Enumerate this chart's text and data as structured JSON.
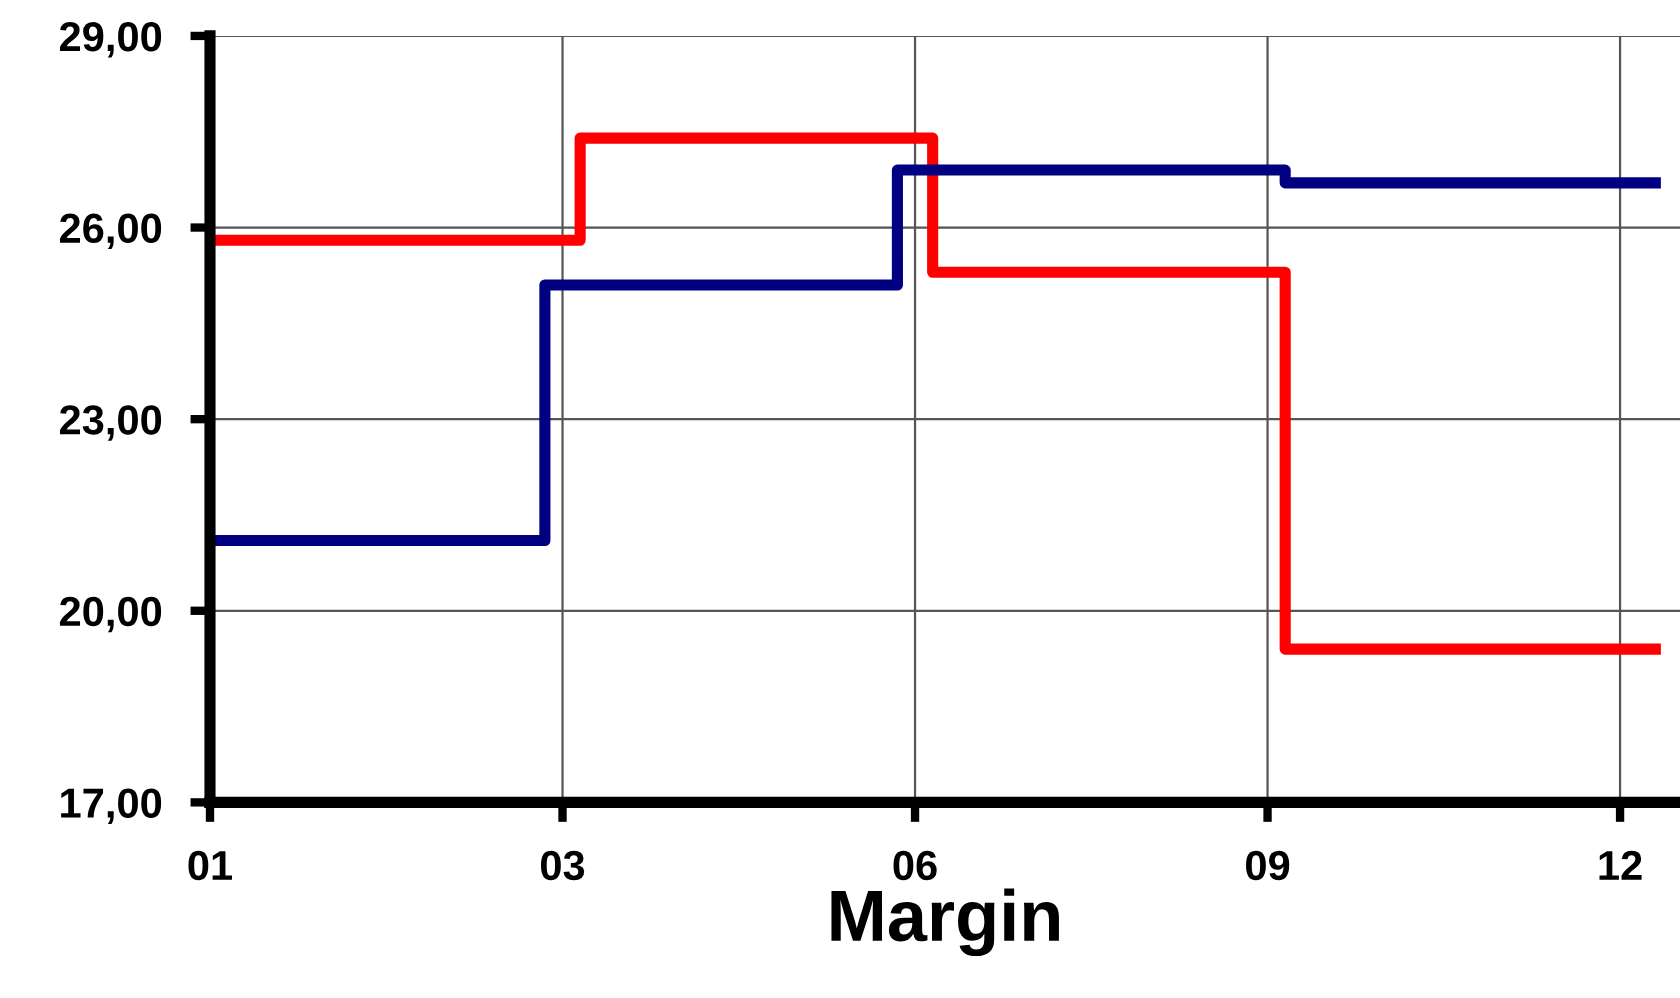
{
  "chart_data": {
    "type": "step",
    "xlabel": "Margin",
    "categories": [
      "01",
      null,
      null,
      null,
      null,
      null,
      null,
      null,
      null,
      null,
      "03",
      null,
      null,
      null,
      null,
      null,
      null,
      null,
      null,
      null,
      "06",
      null,
      null,
      null,
      null,
      null,
      null,
      null,
      null,
      null,
      "09",
      null,
      null,
      null,
      null,
      null,
      null,
      null,
      null,
      null,
      "12",
      null
    ],
    "series": [
      {
        "color": "#ff0000",
        "values": [
          25.8,
          25.8,
          25.8,
          25.8,
          25.8,
          25.8,
          25.8,
          25.8,
          25.8,
          25.8,
          25.8,
          27.4,
          27.4,
          27.4,
          27.4,
          27.4,
          27.4,
          27.4,
          27.4,
          27.4,
          27.4,
          25.3,
          25.3,
          25.3,
          25.3,
          25.3,
          25.3,
          25.3,
          25.3,
          25.3,
          25.3,
          19.4,
          19.4,
          19.4,
          19.4,
          19.4,
          19.4,
          19.4,
          19.4,
          19.4,
          19.4,
          19.4
        ]
      },
      {
        "color": "#000080",
        "values": [
          21.1,
          21.1,
          21.1,
          21.1,
          21.1,
          21.1,
          21.1,
          21.1,
          21.1,
          21.1,
          25.1,
          25.1,
          25.1,
          25.1,
          25.1,
          25.1,
          25.1,
          25.1,
          25.1,
          25.1,
          26.9,
          26.9,
          26.9,
          26.9,
          26.9,
          26.9,
          26.9,
          26.9,
          26.9,
          26.9,
          26.9,
          26.7,
          26.7,
          26.7,
          26.7,
          26.7,
          26.7,
          26.7,
          26.7,
          26.7,
          26.7,
          26.7
        ]
      }
    ],
    "ylim": [
      17,
      29
    ],
    "yticks": [
      {
        "value": 17,
        "label": "17,00"
      },
      {
        "value": 20,
        "label": "20,00"
      },
      {
        "value": 23,
        "label": "23,00"
      },
      {
        "value": 26,
        "label": "26,00"
      },
      {
        "value": 29,
        "label": "29,00"
      }
    ],
    "grid": true,
    "legend": false
  }
}
